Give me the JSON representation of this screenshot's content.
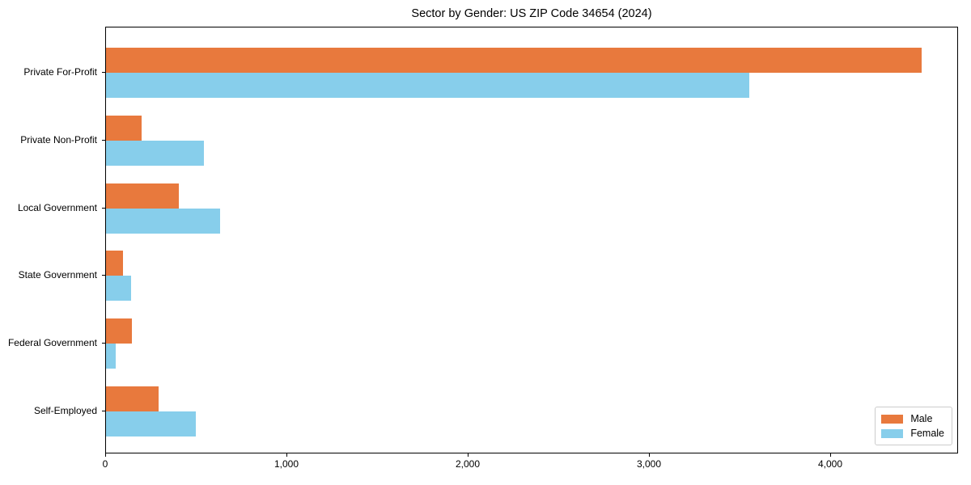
{
  "chart_data": {
    "type": "bar",
    "orientation": "horizontal",
    "title": "Sector by Gender: US ZIP Code 34654 (2024)",
    "categories": [
      "Private For-Profit",
      "Private Non-Profit",
      "Local Government",
      "State Government",
      "Federal Government",
      "Self-Employed"
    ],
    "series": [
      {
        "name": "Male",
        "color": "#e8793d",
        "values": [
          4500,
          195,
          400,
          95,
          145,
          290
        ]
      },
      {
        "name": "Female",
        "color": "#87ceeb",
        "values": [
          3550,
          540,
          630,
          140,
          55,
          495
        ]
      }
    ],
    "xlabel": "",
    "ylabel": "",
    "xlim": [
      0,
      4705
    ],
    "x_ticks": [
      0,
      1000,
      2000,
      3000,
      4000
    ],
    "x_tick_labels": [
      "0",
      "1,000",
      "2,000",
      "3,000",
      "4,000"
    ],
    "grid": false,
    "legend_position": "lower right",
    "background_color": "#ffffff",
    "axis_color": "#000000"
  }
}
